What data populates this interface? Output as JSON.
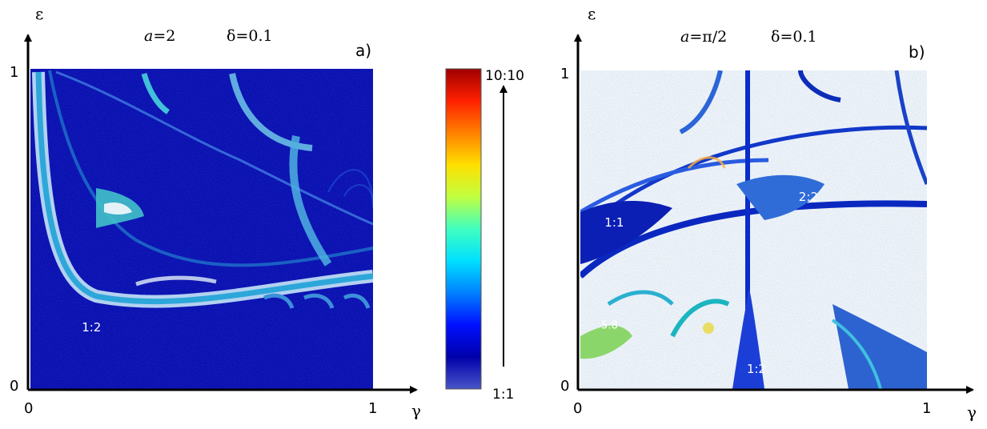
{
  "chart_data": [
    {
      "type": "heatmap",
      "panel_label": "a)",
      "params": {
        "a_text": "=2",
        "delta_text": "=0.1"
      },
      "xlabel": "γ",
      "ylabel": "ε",
      "xlim": [
        0,
        1
      ],
      "ylim": [
        0,
        1
      ],
      "xticks": [
        "0",
        "1"
      ],
      "yticks": [
        "0",
        "1"
      ],
      "background_color": "#0a0fb0",
      "annotations": [
        {
          "text": "1:2",
          "x": 0.15,
          "y": 0.18
        }
      ]
    },
    {
      "type": "heatmap",
      "panel_label": "b)",
      "params": {
        "a_text": "=π/2",
        "delta_text": "=0.1"
      },
      "xlabel": "γ",
      "ylabel": "ε",
      "xlim": [
        0,
        1
      ],
      "ylim": [
        0,
        1
      ],
      "xticks": [
        "0",
        "1"
      ],
      "yticks": [
        "0",
        "1"
      ],
      "background_color": "#f2f4f7",
      "annotations": [
        {
          "text": "1:1",
          "x": 0.07,
          "y": 0.51
        },
        {
          "text": "2:2",
          "x": 0.63,
          "y": 0.59
        },
        {
          "text": "5:8",
          "x": 0.06,
          "y": 0.19
        },
        {
          "text": "1:2",
          "x": 0.48,
          "y": 0.05
        }
      ]
    }
  ],
  "colorbar": {
    "top_label": "10:10",
    "bottom_label": "1:1",
    "colors": [
      "#4a55c8",
      "#0000aa",
      "#0010ff",
      "#0080ff",
      "#00e0ff",
      "#40ffc0",
      "#c0ff40",
      "#ffe000",
      "#ff8000",
      "#ff2000",
      "#a00000"
    ]
  }
}
